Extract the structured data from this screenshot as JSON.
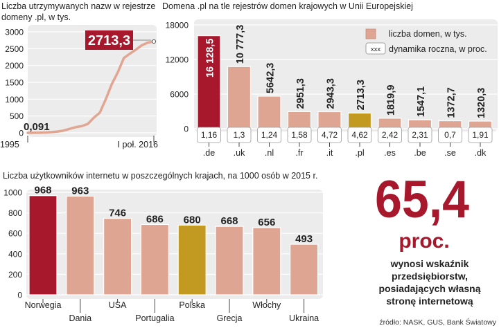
{
  "colors": {
    "panel_bg": "#ececec",
    "bar_salmon": "#dea593",
    "bar_salmon_edge": "#c98a76",
    "bar_dark_red": "#a8182c",
    "bar_gold": "#c29a22",
    "line_salmon": "#e2a592",
    "text_dark": "#222222",
    "big_red": "#a8182c"
  },
  "chart_data": [
    {
      "id": "registry-growth",
      "type": "line",
      "title": "Liczba utrzymywanych nazw w rejestrze domeny .pl, w tys.",
      "title_lines": [
        "Liczba utrzymywanych nazw w rejestrze",
        "domeny .pl, w tys."
      ],
      "x": [
        0,
        1,
        2,
        3,
        4,
        5,
        6,
        7,
        8,
        9,
        10,
        11,
        12,
        13,
        14,
        15,
        16,
        17,
        18,
        19,
        20,
        21
      ],
      "values": [
        0.091,
        2,
        6,
        12,
        22,
        38,
        70,
        120,
        170,
        200,
        265,
        450,
        600,
        1000,
        1450,
        1800,
        2220,
        2350,
        2470,
        2600,
        2680,
        2713.3
      ],
      "xlim": [
        0,
        21
      ],
      "ylim": [
        0,
        3000
      ],
      "yticks": [
        "0",
        "500",
        "1000",
        "1500",
        "2000",
        "2500",
        "3000"
      ],
      "x_start_label": "1995",
      "x_end_label": "I poł. 2016",
      "start_value_label": "0,091",
      "end_value_label": "2713,3"
    },
    {
      "id": "eu-registries",
      "type": "bar",
      "title": "Domena .pl na tle rejestrów domen krajowych w Unii Europejskiej",
      "categories": [
        ".de",
        ".uk",
        ".nl",
        ".fr",
        ".it",
        ".pl",
        ".es",
        ".be",
        ".se",
        ".dk"
      ],
      "values": [
        16128.5,
        10777.3,
        5642.3,
        2951.3,
        2943.3,
        2713.3,
        1819.9,
        1547.1,
        1372.7,
        1320.3
      ],
      "value_labels": [
        "16 128,5",
        "10 777,3",
        "5642,3",
        "2951,3",
        "2943,3",
        "2713,3",
        "1819,9",
        "1547,1",
        "1372,7",
        "1320,3"
      ],
      "growth": [
        "1,16",
        "1,3",
        "1,24",
        "1,58",
        "4,72",
        "4,62",
        "2,42",
        "2,31",
        "0,7",
        "1,91"
      ],
      "ylim": [
        0,
        18000
      ],
      "yticks": [
        "0",
        "6000",
        "12000",
        "18000"
      ],
      "legend": {
        "bar": "liczba domen, w tys.",
        "box_sample": "xxx",
        "box": "dynamika roczna, w proc."
      }
    },
    {
      "id": "internet-users",
      "type": "bar",
      "title": "Liczba użytkowników internetu w poszczególnych krajach, na 1000 osób w 2015 r.",
      "categories": [
        "Norwegia",
        "Dania",
        "USA",
        "Portugalia",
        "Polska",
        "Grecja",
        "Włochy",
        "Ukraina"
      ],
      "values": [
        968,
        963,
        746,
        686,
        680,
        668,
        656,
        493
      ],
      "value_labels": [
        "968",
        "963",
        "746",
        "686",
        "680",
        "668",
        "656",
        "493"
      ],
      "ylim": [
        0,
        1000
      ],
      "yticks": [
        "0",
        "200",
        "400",
        "600",
        "800",
        "1000"
      ]
    }
  ],
  "callout": {
    "big_number": "65,4",
    "unit": "proc.",
    "lines": [
      "wynosi wskaźnik",
      "przedsiębiorstw,",
      "posiadających własną",
      "stronę internetową"
    ]
  },
  "source": "źródło: NASK, GUS, Bank Światowy"
}
